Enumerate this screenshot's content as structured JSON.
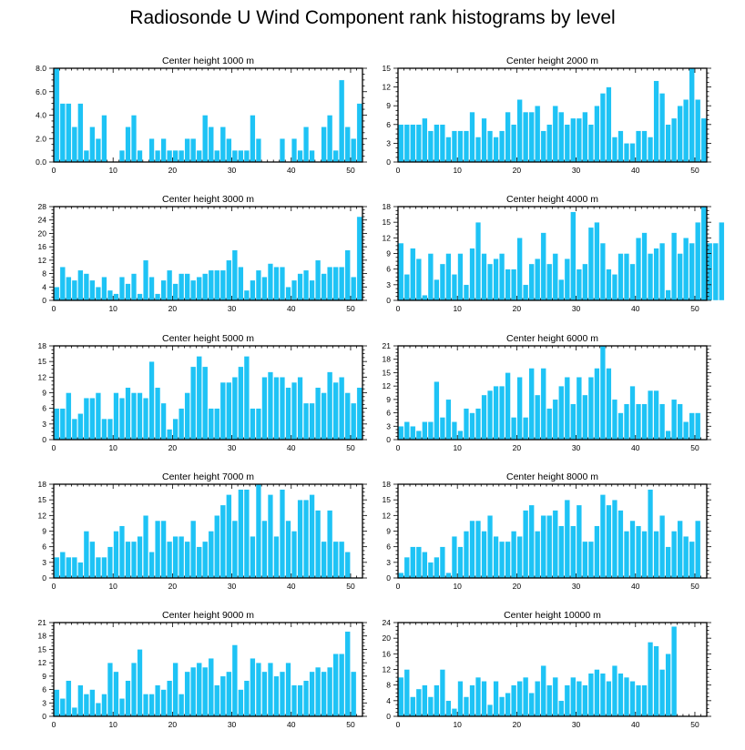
{
  "page": {
    "title": "Radiosonde U Wind Component rank histograms by level",
    "bar_color": "#1ec3f5",
    "bar_edge_color": "#ffffff",
    "axis_color": "#000000"
  },
  "chart_data": [
    {
      "type": "bar",
      "title": "Center height 1000 m",
      "xlabel": "",
      "ylabel": "",
      "xlim": [
        0,
        52
      ],
      "ylim": [
        0,
        8
      ],
      "x_ticks": [
        0,
        10,
        20,
        30,
        40,
        50
      ],
      "y_ticks": [
        0,
        2,
        4,
        6,
        8
      ],
      "y_tick_format": "0.0",
      "values": [
        8,
        5,
        5,
        3,
        5,
        1,
        3,
        2,
        4,
        0,
        0,
        1,
        3,
        4,
        1,
        0,
        2,
        1,
        2,
        1,
        1,
        1,
        2,
        2,
        1,
        4,
        3,
        1,
        3,
        2,
        1,
        1,
        1,
        4,
        2,
        0,
        0,
        0,
        2,
        0,
        2,
        1,
        3,
        1,
        0,
        3,
        4,
        1,
        7,
        3,
        2,
        5
      ]
    },
    {
      "type": "bar",
      "title": "Center height 2000 m",
      "xlabel": "",
      "ylabel": "",
      "xlim": [
        0,
        52
      ],
      "ylim": [
        0,
        15
      ],
      "x_ticks": [
        0,
        10,
        20,
        30,
        40,
        50
      ],
      "y_ticks": [
        0,
        3,
        6,
        9,
        12,
        15
      ],
      "y_tick_format": "0",
      "values": [
        6,
        6,
        6,
        6,
        7,
        5,
        6,
        6,
        4,
        5,
        5,
        5,
        8,
        4,
        7,
        5,
        4,
        5,
        8,
        6,
        10,
        8,
        8,
        9,
        5,
        6,
        9,
        8,
        6,
        7,
        7,
        8,
        6,
        9,
        11,
        12,
        4,
        5,
        3,
        3,
        5,
        5,
        4,
        13,
        11,
        6,
        7,
        9,
        10,
        15,
        10,
        7
      ]
    },
    {
      "type": "bar",
      "title": "Center height 3000 m",
      "xlabel": "",
      "ylabel": "",
      "xlim": [
        0,
        52
      ],
      "ylim": [
        0,
        28
      ],
      "x_ticks": [
        0,
        10,
        20,
        30,
        40,
        50
      ],
      "y_ticks": [
        0,
        4,
        8,
        12,
        16,
        20,
        24,
        28
      ],
      "y_tick_format": "0",
      "values": [
        4,
        10,
        7,
        6,
        9,
        8,
        6,
        4,
        7,
        3,
        2,
        7,
        5,
        8,
        2,
        12,
        7,
        2,
        6,
        9,
        5,
        8,
        8,
        6,
        7,
        8,
        9,
        9,
        9,
        12,
        15,
        10,
        3,
        6,
        9,
        7,
        11,
        10,
        10,
        4,
        6,
        8,
        9,
        6,
        12,
        8,
        10,
        10,
        10,
        15,
        7,
        25
      ]
    },
    {
      "type": "bar",
      "title": "Center height 4000 m",
      "xlabel": "",
      "ylabel": "",
      "xlim": [
        0,
        52
      ],
      "ylim": [
        0,
        18
      ],
      "x_ticks": [
        0,
        10,
        20,
        30,
        40,
        50
      ],
      "y_ticks": [
        0,
        3,
        6,
        9,
        12,
        15,
        18
      ],
      "y_tick_format": "0",
      "values": [
        11,
        5,
        10,
        8,
        1,
        9,
        4,
        7,
        9,
        5,
        9,
        3,
        10,
        15,
        9,
        7,
        8,
        9,
        6,
        6,
        12,
        3,
        7,
        8,
        13,
        7,
        9,
        4,
        8,
        17,
        6,
        7,
        14,
        15,
        11,
        6,
        5,
        9,
        9,
        7,
        12,
        13,
        9,
        10,
        11,
        2,
        13,
        9,
        12,
        11,
        15,
        18,
        11,
        11,
        15
      ]
    },
    {
      "type": "bar",
      "title": "Center height 5000 m",
      "xlabel": "",
      "ylabel": "",
      "xlim": [
        0,
        52
      ],
      "ylim": [
        0,
        18
      ],
      "x_ticks": [
        0,
        10,
        20,
        30,
        40,
        50
      ],
      "y_ticks": [
        0,
        3,
        6,
        9,
        12,
        15,
        18
      ],
      "y_tick_format": "0",
      "values": [
        6,
        6,
        9,
        4,
        5,
        8,
        8,
        9,
        4,
        4,
        9,
        8,
        10,
        9,
        9,
        8,
        15,
        10,
        7,
        2,
        4,
        6,
        9,
        14,
        16,
        14,
        6,
        6,
        11,
        11,
        12,
        14,
        16,
        6,
        6,
        12,
        13,
        12,
        12,
        10,
        11,
        12,
        7,
        7,
        10,
        9,
        13,
        11,
        12,
        9,
        7,
        10
      ]
    },
    {
      "type": "bar",
      "title": "Center height 6000 m",
      "xlabel": "",
      "ylabel": "",
      "xlim": [
        0,
        52
      ],
      "ylim": [
        0,
        21
      ],
      "x_ticks": [
        0,
        10,
        20,
        30,
        40,
        50
      ],
      "y_ticks": [
        0,
        3,
        6,
        9,
        12,
        15,
        18,
        21
      ],
      "y_tick_format": "0",
      "values": [
        3,
        4,
        3,
        2,
        4,
        4,
        13,
        5,
        9,
        4,
        2,
        7,
        6,
        7,
        10,
        11,
        12,
        12,
        15,
        5,
        14,
        5,
        16,
        10,
        16,
        7,
        9,
        12,
        14,
        8,
        14,
        10,
        14,
        16,
        21,
        16,
        9,
        6,
        8,
        12,
        8,
        8,
        11,
        11,
        8,
        2,
        9,
        8,
        4,
        6,
        6
      ]
    },
    {
      "type": "bar",
      "title": "Center height 7000 m",
      "xlabel": "",
      "ylabel": "",
      "xlim": [
        0,
        52
      ],
      "ylim": [
        0,
        18
      ],
      "x_ticks": [
        0,
        10,
        20,
        30,
        40,
        50
      ],
      "y_ticks": [
        0,
        3,
        6,
        9,
        12,
        15,
        18
      ],
      "y_tick_format": "0",
      "values": [
        4,
        5,
        4,
        4,
        3,
        9,
        7,
        4,
        4,
        6,
        9,
        10,
        7,
        7,
        8,
        12,
        5,
        11,
        11,
        7,
        8,
        8,
        7,
        11,
        6,
        7,
        9,
        12,
        14,
        16,
        11,
        17,
        17,
        8,
        18,
        11,
        16,
        8,
        17,
        11,
        9,
        15,
        15,
        16,
        13,
        7,
        13,
        7,
        7,
        5
      ]
    },
    {
      "type": "bar",
      "title": "Center height 8000 m",
      "xlabel": "",
      "ylabel": "",
      "xlim": [
        0,
        52
      ],
      "ylim": [
        0,
        18
      ],
      "x_ticks": [
        0,
        10,
        20,
        30,
        40,
        50
      ],
      "y_ticks": [
        0,
        3,
        6,
        9,
        12,
        15,
        18
      ],
      "y_tick_format": "0",
      "values": [
        1,
        4,
        6,
        6,
        5,
        3,
        4,
        6,
        1,
        8,
        6,
        9,
        11,
        11,
        9,
        12,
        8,
        7,
        7,
        9,
        8,
        13,
        14,
        9,
        12,
        12,
        13,
        10,
        15,
        10,
        14,
        7,
        7,
        10,
        16,
        14,
        15,
        13,
        9,
        11,
        10,
        9,
        17,
        9,
        12,
        6,
        9,
        11,
        8,
        7,
        11
      ]
    },
    {
      "type": "bar",
      "title": "Center height 9000 m",
      "xlabel": "",
      "ylabel": "",
      "xlim": [
        0,
        52
      ],
      "ylim": [
        0,
        21
      ],
      "x_ticks": [
        0,
        10,
        20,
        30,
        40,
        50
      ],
      "y_ticks": [
        0,
        3,
        6,
        9,
        12,
        15,
        18,
        21
      ],
      "y_tick_format": "0",
      "values": [
        6,
        4,
        8,
        2,
        7,
        5,
        6,
        3,
        5,
        12,
        10,
        4,
        8,
        12,
        15,
        5,
        5,
        7,
        6,
        8,
        12,
        5,
        10,
        11,
        12,
        11,
        13,
        7,
        9,
        10,
        16,
        6,
        8,
        13,
        12,
        10,
        12,
        9,
        10,
        12,
        7,
        7,
        8,
        10,
        11,
        10,
        11,
        14,
        14,
        19,
        10
      ]
    },
    {
      "type": "bar",
      "title": "Center height 10000 m",
      "xlabel": "",
      "ylabel": "",
      "xlim": [
        0,
        52
      ],
      "ylim": [
        0,
        24
      ],
      "x_ticks": [
        0,
        10,
        20,
        30,
        40,
        50
      ],
      "y_ticks": [
        0,
        4,
        8,
        12,
        16,
        20,
        24
      ],
      "y_tick_format": "0",
      "values": [
        10,
        12,
        5,
        7,
        8,
        5,
        8,
        12,
        4,
        2,
        9,
        5,
        8,
        10,
        9,
        3,
        9,
        5,
        6,
        8,
        9,
        10,
        6,
        9,
        13,
        8,
        10,
        4,
        8,
        10,
        9,
        8,
        11,
        12,
        11,
        9,
        13,
        11,
        10,
        9,
        8,
        8,
        19,
        18,
        12,
        16,
        23
      ]
    }
  ]
}
